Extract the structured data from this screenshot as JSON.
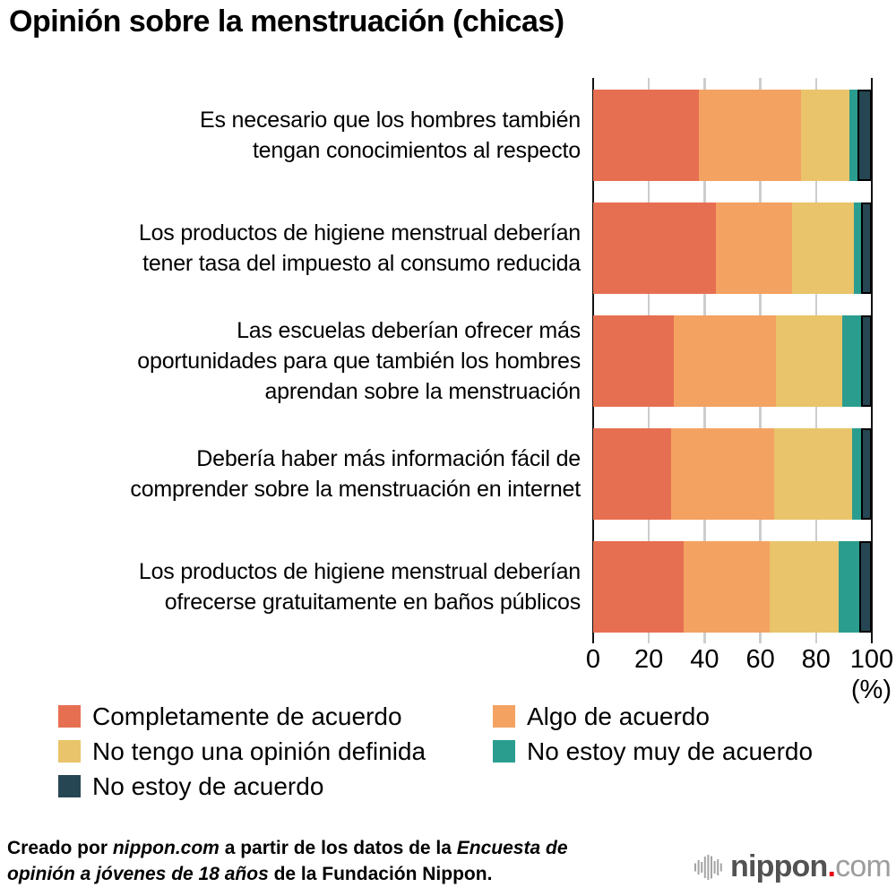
{
  "title": "Opinión sobre la menstruación (chicas)",
  "chart_data": {
    "type": "bar",
    "stacked": true,
    "orientation": "horizontal",
    "grid": true,
    "x_axis": {
      "range": [
        0,
        100
      ],
      "ticks": [
        0,
        20,
        40,
        60,
        80,
        100
      ],
      "unit_label": "(%)"
    },
    "categories": [
      "Es necesario que los hombres también\ntengan conocimientos al respecto",
      "Los productos de higiene menstrual deberían\ntener tasa del impuesto al consumo reducida",
      "Las escuelas deberían ofrecer más\noportunidades para que también los hombres\naprendan sobre la menstruación",
      "Debería haber más información fácil de\ncomprender sobre la menstruación en internet",
      "Los productos de higiene menstrual deberían\nofrecerse gratuitamente en baños públicos"
    ],
    "series": [
      {
        "name": "Completamente de acuerdo",
        "color": "#E76F51",
        "values": [
          38,
          44,
          29,
          28,
          32.5
        ]
      },
      {
        "name": "Algo de acuerdo",
        "color": "#F4A261",
        "values": [
          36.5,
          27.5,
          36.5,
          37,
          31
        ]
      },
      {
        "name": "No tengo una opinión definida",
        "color": "#E9C46A",
        "values": [
          17.5,
          22,
          24,
          28,
          24.5
        ]
      },
      {
        "name": "No estoy muy de acuerdo",
        "color": "#2A9D8F",
        "values": [
          3,
          2.5,
          6.5,
          3,
          7.5
        ]
      },
      {
        "name": "No estoy de acuerdo",
        "color": "#264653",
        "values": [
          5,
          4,
          4,
          4,
          4.5
        ],
        "outlined": true
      }
    ],
    "legend_position": "bottom",
    "legend_columns": 2
  },
  "colors": {
    "gridline": "#CDCDCD",
    "axis": "#111111",
    "background": "#FFFFFF"
  },
  "footer": {
    "lines": [
      [
        {
          "t": "Creado por ",
          "i": false
        },
        {
          "t": "nippon.com",
          "i": true
        },
        {
          "t": " a partir de los datos de la ",
          "i": false
        },
        {
          "t": "Encuesta de",
          "i": true
        }
      ],
      [
        {
          "t": "opinión a jóvenes de 18 años",
          "i": true
        },
        {
          "t": " de la Fundación Nippon.",
          "i": false
        }
      ]
    ]
  },
  "logo": {
    "name": "nippon.com",
    "bold": "nippon",
    "dot": ".",
    "light": "com",
    "dot_color": "#E60012",
    "icon": "soundwave-circle-icon"
  }
}
